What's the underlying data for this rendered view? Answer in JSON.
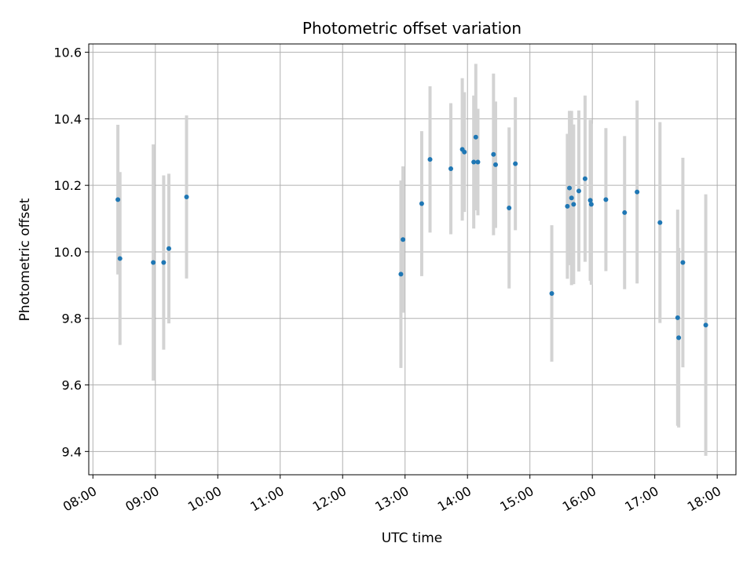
{
  "chart_data": {
    "type": "scatter",
    "title": "Photometric offset variation",
    "xlabel": "UTC time",
    "ylabel": "Photometric offset",
    "grid": true,
    "xlim": [
      "07:56",
      "18:18"
    ],
    "ylim": [
      9.33,
      10.625
    ],
    "x_ticks": [
      "08:00",
      "09:00",
      "10:00",
      "11:00",
      "12:00",
      "13:00",
      "14:00",
      "15:00",
      "16:00",
      "17:00",
      "18:00"
    ],
    "y_ticks": [
      "9.4",
      "9.6",
      "9.8",
      "10.0",
      "10.2",
      "10.4",
      "10.6"
    ],
    "colors": {
      "point": "#1f77b4",
      "errorbar": "#d3d3d3",
      "grid": "#b0b0b0"
    },
    "points": [
      {
        "t": "08:24",
        "y": 10.157,
        "err": 0.225
      },
      {
        "t": "08:26",
        "y": 9.98,
        "err": 0.26
      },
      {
        "t": "08:58",
        "y": 9.968,
        "err": 0.355
      },
      {
        "t": "09:08",
        "y": 9.968,
        "err": 0.262
      },
      {
        "t": "09:13",
        "y": 10.01,
        "err": 0.225
      },
      {
        "t": "09:30",
        "y": 10.165,
        "err": 0.245
      },
      {
        "t": "12:56",
        "y": 9.933,
        "err": 0.282
      },
      {
        "t": "12:58",
        "y": 10.037,
        "err": 0.22
      },
      {
        "t": "13:16",
        "y": 10.145,
        "err": 0.218
      },
      {
        "t": "13:24",
        "y": 10.278,
        "err": 0.22
      },
      {
        "t": "13:44",
        "y": 10.25,
        "err": 0.197
      },
      {
        "t": "13:55",
        "y": 10.308,
        "err": 0.214
      },
      {
        "t": "13:57",
        "y": 10.3,
        "err": 0.18
      },
      {
        "t": "14:06",
        "y": 10.27,
        "err": 0.2
      },
      {
        "t": "14:08",
        "y": 10.345,
        "err": 0.22
      },
      {
        "t": "14:10",
        "y": 10.27,
        "err": 0.16
      },
      {
        "t": "14:25",
        "y": 10.293,
        "err": 0.243
      },
      {
        "t": "14:27",
        "y": 10.262,
        "err": 0.19
      },
      {
        "t": "14:40",
        "y": 10.132,
        "err": 0.242
      },
      {
        "t": "14:46",
        "y": 10.265,
        "err": 0.2
      },
      {
        "t": "15:21",
        "y": 9.875,
        "err": 0.205
      },
      {
        "t": "15:36",
        "y": 10.137,
        "err": 0.218
      },
      {
        "t": "15:38",
        "y": 10.192,
        "err": 0.232
      },
      {
        "t": "15:40",
        "y": 10.162,
        "err": 0.262
      },
      {
        "t": "15:42",
        "y": 10.143,
        "err": 0.24
      },
      {
        "t": "15:47",
        "y": 10.183,
        "err": 0.242
      },
      {
        "t": "15:53",
        "y": 10.22,
        "err": 0.25
      },
      {
        "t": "15:58",
        "y": 10.155,
        "err": 0.242
      },
      {
        "t": "15:59",
        "y": 10.143,
        "err": 0.242
      },
      {
        "t": "16:13",
        "y": 10.157,
        "err": 0.215
      },
      {
        "t": "16:31",
        "y": 10.118,
        "err": 0.23
      },
      {
        "t": "16:43",
        "y": 10.18,
        "err": 0.275
      },
      {
        "t": "17:05",
        "y": 10.088,
        "err": 0.302
      },
      {
        "t": "17:22",
        "y": 9.802,
        "err": 0.325
      },
      {
        "t": "17:23",
        "y": 9.742,
        "err": 0.27
      },
      {
        "t": "17:27",
        "y": 9.968,
        "err": 0.315
      },
      {
        "t": "17:49",
        "y": 9.78,
        "err": 0.393
      }
    ]
  }
}
